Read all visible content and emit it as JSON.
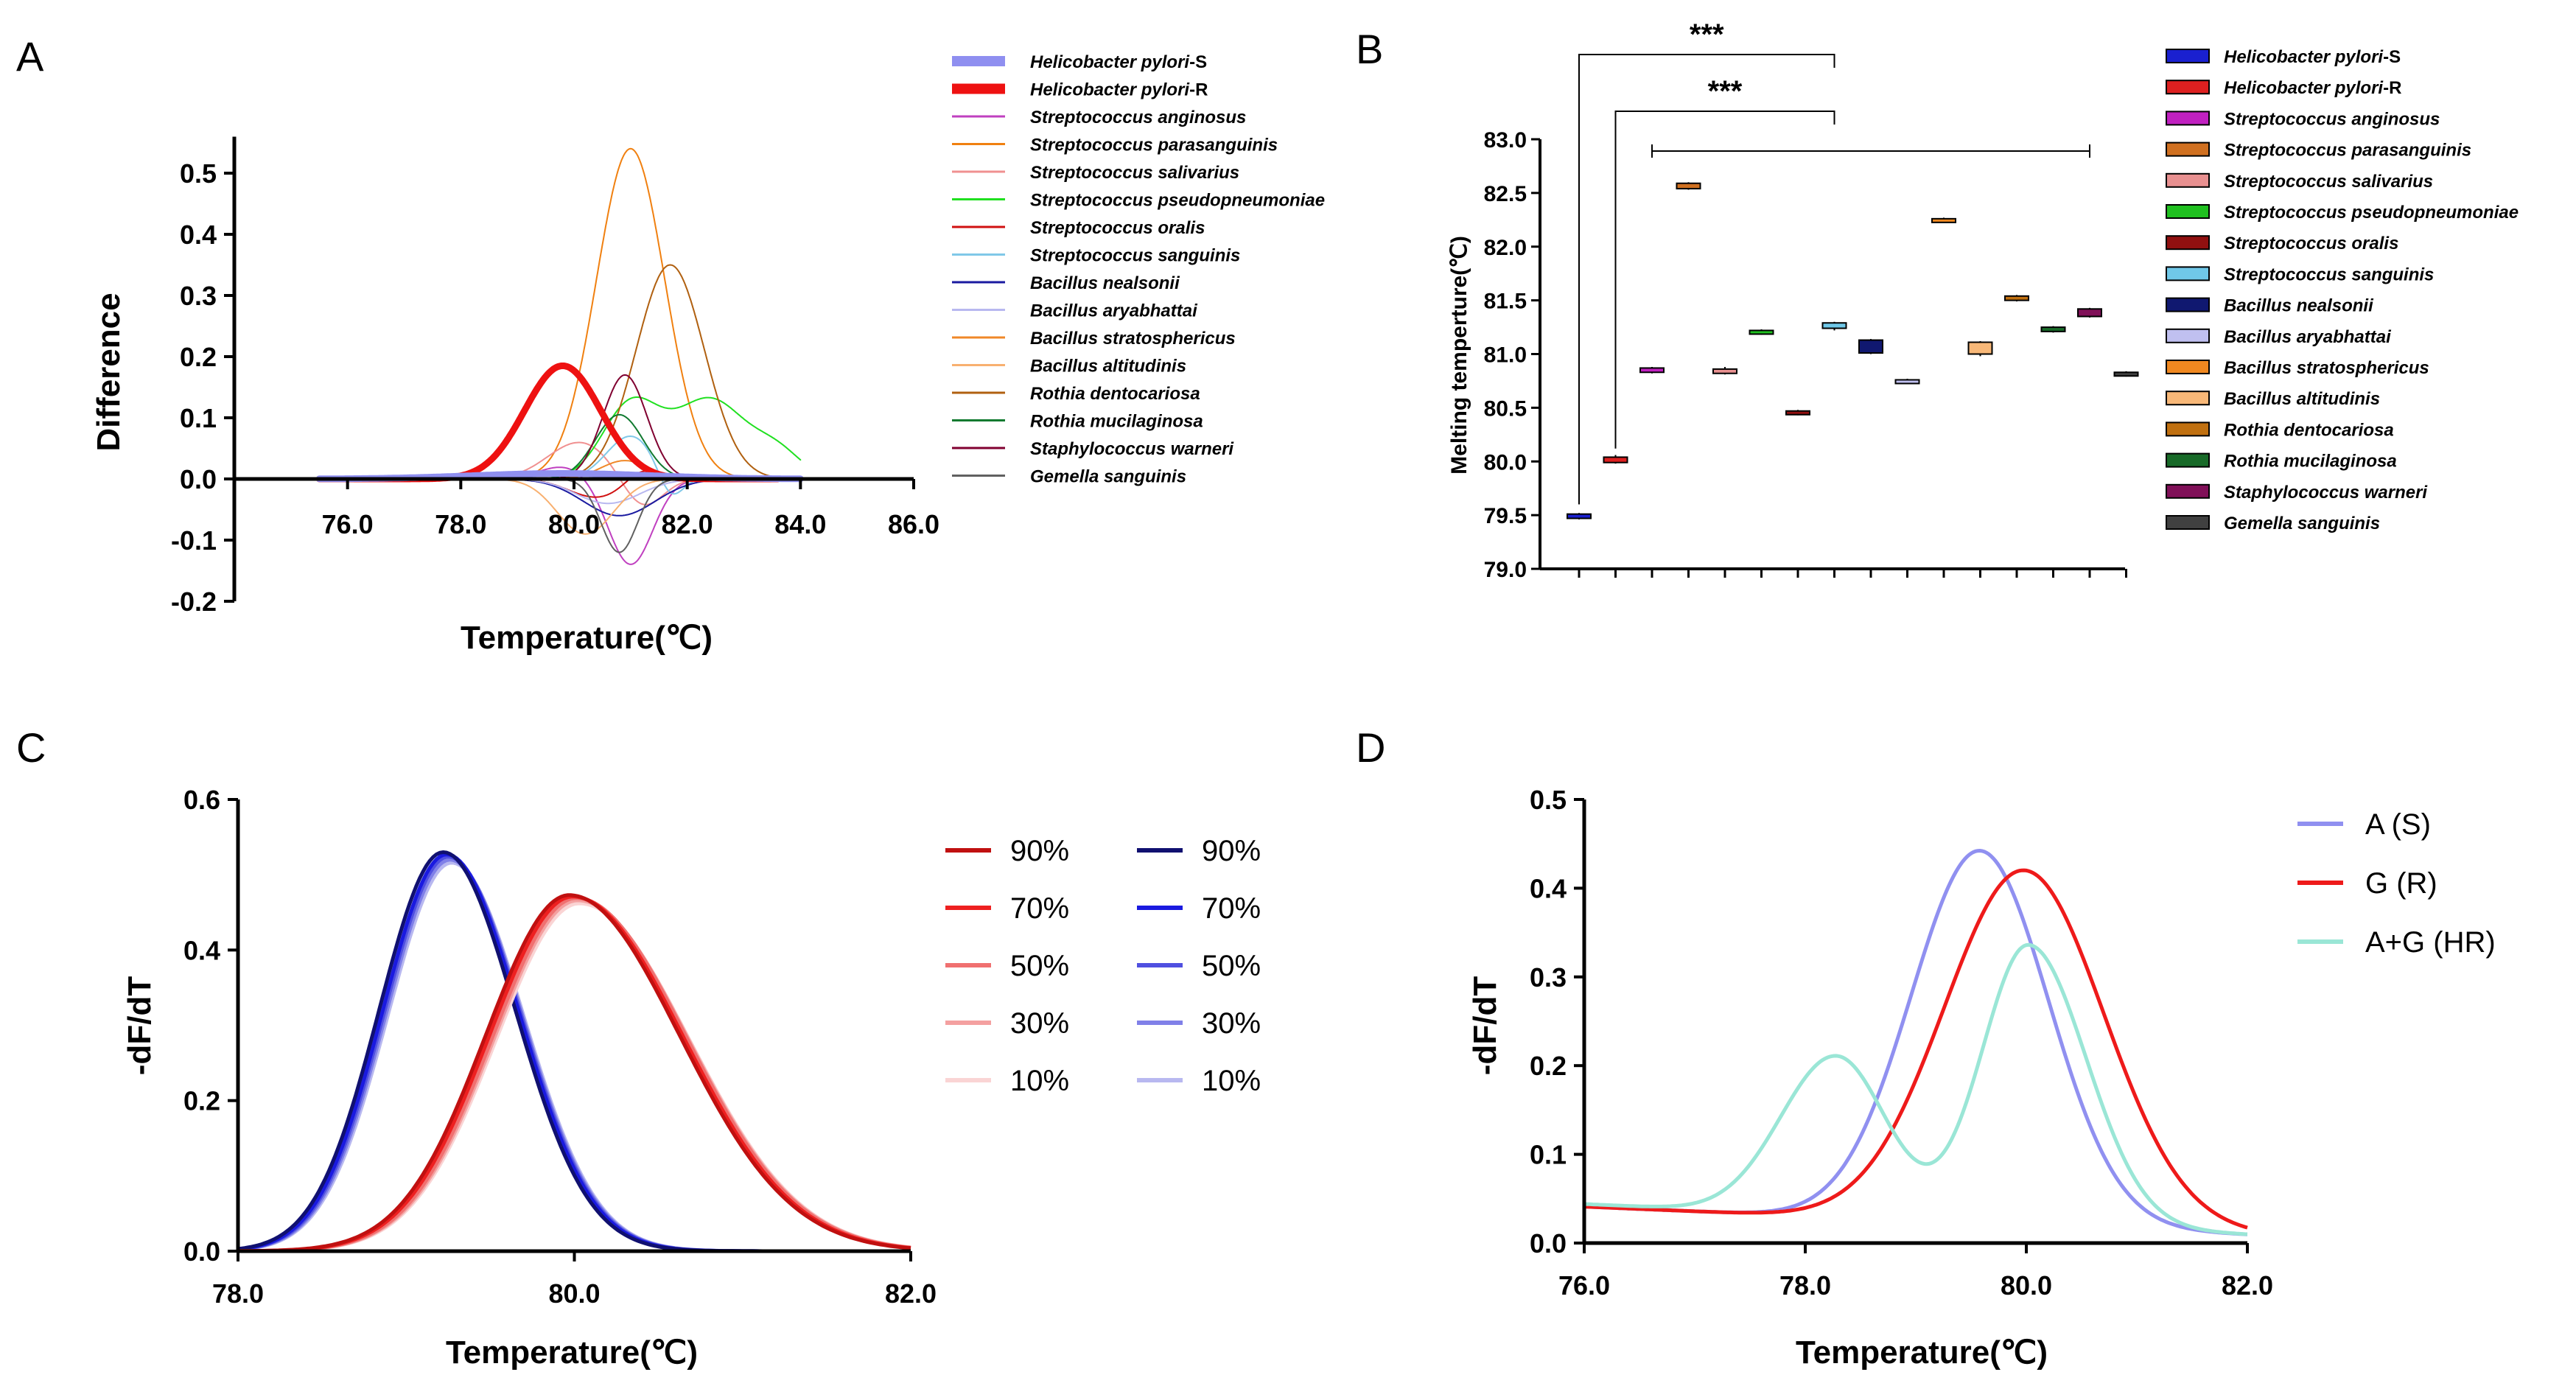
{
  "panels": {
    "A": {
      "label": "A"
    },
    "B": {
      "label": "B"
    },
    "C": {
      "label": "C"
    },
    "D": {
      "label": "D"
    }
  },
  "chart_data": [
    {
      "id": "A",
      "type": "line",
      "title": "",
      "xlabel": "Temperature(℃)",
      "ylabel": "Difference",
      "xlim": [
        74.0,
        86.0
      ],
      "ylim": [
        -0.2,
        0.55
      ],
      "xticks": [
        76.0,
        78.0,
        80.0,
        82.0,
        84.0,
        86.0
      ],
      "xtick_labels": [
        "76.0",
        "78.0",
        "80.0",
        "82.0",
        "84.0",
        "86.0"
      ],
      "yticks": [
        -0.2,
        -0.1,
        0.0,
        0.1,
        0.2,
        0.3,
        0.4,
        0.5
      ],
      "ytick_labels": [
        "-0.2",
        "-0.1",
        "0.0",
        "0.1",
        "0.2",
        "0.3",
        "0.4",
        "0.5"
      ],
      "series": [
        {
          "name": "Helicobacter pylori",
          "suffix": "-S",
          "color": "#8f8ff0",
          "width": 9,
          "shape": [
            [
              0,
              0.009,
              1.0
            ]
          ]
        },
        {
          "name": "Helicobacter pylori",
          "suffix": "-R",
          "color": "#ee1111",
          "width": 9,
          "shape": [
            [
              79.8,
              0.185,
              0.95
            ]
          ]
        },
        {
          "name": "Streptococcus anginosus",
          "suffix": "",
          "color": "#c040c0",
          "width": 2,
          "shape": [
            [
              81.0,
              -0.14,
              0.55
            ],
            [
              79.8,
              0.02,
              0.6
            ]
          ]
        },
        {
          "name": "Streptococcus parasanguinis",
          "suffix": "",
          "color": "#f08010",
          "width": 2,
          "shape": [
            [
              81.0,
              0.54,
              0.85
            ]
          ]
        },
        {
          "name": "Streptococcus salivarius",
          "suffix": "",
          "color": "#f09090",
          "width": 2,
          "shape": [
            [
              80.1,
              0.06,
              0.8
            ],
            [
              81.2,
              -0.05,
              0.5
            ]
          ]
        },
        {
          "name": "Streptococcus pseudopneumoniae",
          "suffix": "",
          "color": "#20e020",
          "width": 2,
          "shape": [
            [
              81.0,
              0.12,
              0.7
            ],
            [
              82.4,
              0.13,
              0.9
            ],
            [
              83.6,
              0.04,
              0.6
            ]
          ]
        },
        {
          "name": "Streptococcus oralis",
          "suffix": "",
          "color": "#d01010",
          "width": 2,
          "shape": [
            [
              80.4,
              -0.03,
              0.7
            ],
            [
              81.2,
              0.02,
              0.4
            ]
          ]
        },
        {
          "name": "Streptococcus sanguinis",
          "suffix": "",
          "color": "#80c8e8",
          "width": 2,
          "shape": [
            [
              81.0,
              0.07,
              0.6
            ],
            [
              81.7,
              -0.04,
              0.3
            ]
          ]
        },
        {
          "name": "Bacillus nealsonii",
          "suffix": "",
          "color": "#1a1aa0",
          "width": 2,
          "shape": [
            [
              80.8,
              -0.06,
              0.9
            ]
          ]
        },
        {
          "name": "Bacillus aryabhattai",
          "suffix": "",
          "color": "#b8b8f0",
          "width": 2,
          "shape": [
            [
              80.6,
              -0.04,
              0.8
            ]
          ]
        },
        {
          "name": "Bacillus stratosphericus",
          "suffix": "",
          "color": "#f08828",
          "width": 2,
          "shape": [
            [
              80.9,
              0.03,
              0.6
            ]
          ]
        },
        {
          "name": "Bacillus altitudinis",
          "suffix": "",
          "color": "#f8b070",
          "width": 2,
          "shape": [
            [
              80.2,
              -0.09,
              0.7
            ]
          ]
        },
        {
          "name": "Rothia dentocariosa",
          "suffix": "",
          "color": "#b06010",
          "width": 2,
          "shape": [
            [
              81.7,
              0.35,
              0.85
            ]
          ]
        },
        {
          "name": "Rothia mucilaginosa",
          "suffix": "",
          "color": "#107a30",
          "width": 2,
          "shape": [
            [
              80.8,
              0.105,
              0.6
            ]
          ]
        },
        {
          "name": "Staphylococcus warneri",
          "suffix": "",
          "color": "#800030",
          "width": 2,
          "shape": [
            [
              80.9,
              0.17,
              0.55
            ]
          ]
        },
        {
          "name": "Gemella sanguinis",
          "suffix": "",
          "color": "#606060",
          "width": 2,
          "shape": [
            [
              80.8,
              -0.12,
              0.45
            ]
          ]
        }
      ]
    },
    {
      "id": "B",
      "type": "box",
      "title": "",
      "xlabel": "",
      "ylabel": "Melting temperture(℃)",
      "ylim": [
        79.0,
        83.0
      ],
      "yticks": [
        79.0,
        79.5,
        80.0,
        80.5,
        81.0,
        81.5,
        82.0,
        82.5,
        83.0
      ],
      "ytick_labels": [
        "79.0",
        "79.5",
        "80.0",
        "80.5",
        "81.0",
        "81.5",
        "82.0",
        "82.5",
        "83.0"
      ],
      "significance": [
        {
          "label": "***",
          "from": 1,
          "to": 8
        },
        {
          "label": "***",
          "from": 2,
          "to": 8
        },
        {
          "label": "",
          "from": 3,
          "to": 15
        }
      ],
      "series": [
        {
          "name": "Helicobacter pylori",
          "suffix": "-S",
          "color": "#1a20d0",
          "low": 79.46,
          "q1": 79.47,
          "q3": 79.51,
          "high": 79.52
        },
        {
          "name": "Helicobacter pylori",
          "suffix": "-R",
          "color": "#dd2020",
          "low": 79.98,
          "q1": 79.99,
          "q3": 80.04,
          "high": 80.06
        },
        {
          "name": "Streptococcus anginosus",
          "suffix": "",
          "color": "#c020c0",
          "low": 80.82,
          "q1": 80.83,
          "q3": 80.87,
          "high": 80.88
        },
        {
          "name": "Streptococcus parasanguinis",
          "suffix": "",
          "color": "#d07020",
          "low": 82.53,
          "q1": 82.54,
          "q3": 82.59,
          "high": 82.6
        },
        {
          "name": "Streptococcus salivarius",
          "suffix": "",
          "color": "#e89090",
          "low": 80.81,
          "q1": 80.82,
          "q3": 80.86,
          "high": 80.88
        },
        {
          "name": "Streptococcus pseudopneumoniae",
          "suffix": "",
          "color": "#20c020",
          "low": 81.18,
          "q1": 81.19,
          "q3": 81.22,
          "high": 81.23
        },
        {
          "name": "Streptococcus oralis",
          "suffix": "",
          "color": "#901010",
          "low": 80.43,
          "q1": 80.44,
          "q3": 80.47,
          "high": 80.48
        },
        {
          "name": "Streptococcus sanguinis",
          "suffix": "",
          "color": "#70c8e8",
          "low": 81.22,
          "q1": 81.24,
          "q3": 81.29,
          "high": 81.3
        },
        {
          "name": "Bacillus nealsonii",
          "suffix": "",
          "color": "#101870",
          "low": 81.0,
          "q1": 81.01,
          "q3": 81.13,
          "high": 81.14
        },
        {
          "name": "Bacillus aryabhattai",
          "suffix": "",
          "color": "#c0c0f0",
          "low": 80.73,
          "q1": 80.74,
          "q3": 80.76,
          "high": 80.77
        },
        {
          "name": "Bacillus stratosphericus",
          "suffix": "",
          "color": "#f08820",
          "low": 82.23,
          "q1": 82.24,
          "q3": 82.26,
          "high": 82.27
        },
        {
          "name": "Bacillus altitudinis",
          "suffix": "",
          "color": "#f8b878",
          "low": 80.98,
          "q1": 81.0,
          "q3": 81.11,
          "high": 81.12
        },
        {
          "name": "Rothia dentocariosa",
          "suffix": "",
          "color": "#c07010",
          "low": 81.49,
          "q1": 81.5,
          "q3": 81.54,
          "high": 81.55
        },
        {
          "name": "Rothia mucilaginosa",
          "suffix": "",
          "color": "#186a28",
          "low": 81.2,
          "q1": 81.21,
          "q3": 81.25,
          "high": 81.26
        },
        {
          "name": "Staphylococcus warneri",
          "suffix": "",
          "color": "#801058",
          "low": 81.34,
          "q1": 81.35,
          "q3": 81.42,
          "high": 81.43
        },
        {
          "name": "Gemella sanguinis",
          "suffix": "",
          "color": "#404040",
          "low": 80.79,
          "q1": 80.8,
          "q3": 80.83,
          "high": 80.84
        }
      ]
    },
    {
      "id": "C",
      "type": "line",
      "title": "",
      "xlabel": "Temperature(℃)",
      "ylabel": "-dF/dT",
      "xlim": [
        78.0,
        82.0
      ],
      "ylim": [
        0.0,
        0.6
      ],
      "xticks": [
        78.0,
        80.0,
        82.0
      ],
      "xtick_labels": [
        "78.0",
        "80.0",
        "82.0"
      ],
      "yticks": [
        0.0,
        0.2,
        0.4,
        0.6
      ],
      "ytick_labels": [
        "0.0",
        "0.2",
        "0.4",
        "0.6"
      ],
      "series": [
        {
          "name": "90%",
          "group": "R",
          "color": "#c01010",
          "width": 5,
          "peak": [
            79.97,
            0.473,
            0.72,
            0.95
          ]
        },
        {
          "name": "70%",
          "group": "R",
          "color": "#ee2020",
          "width": 5,
          "peak": [
            79.99,
            0.471,
            0.72,
            0.95
          ]
        },
        {
          "name": "50%",
          "group": "R",
          "color": "#f07070",
          "width": 5,
          "peak": [
            80.01,
            0.469,
            0.72,
            0.95
          ]
        },
        {
          "name": "30%",
          "group": "R",
          "color": "#f4a0a0",
          "width": 5,
          "peak": [
            80.02,
            0.466,
            0.72,
            0.95
          ]
        },
        {
          "name": "10%",
          "group": "R",
          "color": "#fad4d4",
          "width": 5,
          "peak": [
            80.03,
            0.462,
            0.72,
            0.95
          ]
        },
        {
          "name": "90%",
          "group": "S",
          "color": "#101070",
          "width": 5,
          "peak": [
            79.22,
            0.53,
            0.55,
            0.62
          ]
        },
        {
          "name": "70%",
          "group": "S",
          "color": "#1a1ae0",
          "width": 5,
          "peak": [
            79.24,
            0.527,
            0.55,
            0.62
          ]
        },
        {
          "name": "50%",
          "group": "S",
          "color": "#5050e0",
          "width": 5,
          "peak": [
            79.25,
            0.524,
            0.55,
            0.62
          ]
        },
        {
          "name": "30%",
          "group": "S",
          "color": "#8080e8",
          "width": 5,
          "peak": [
            79.26,
            0.52,
            0.55,
            0.62
          ]
        },
        {
          "name": "10%",
          "group": "S",
          "color": "#b8b8f0",
          "width": 5,
          "peak": [
            79.27,
            0.516,
            0.55,
            0.62
          ]
        }
      ]
    },
    {
      "id": "D",
      "type": "line",
      "title": "",
      "xlabel": "Temperature(℃)",
      "ylabel": "-dF/dT",
      "xlim": [
        76.0,
        82.0
      ],
      "ylim": [
        0.0,
        0.5
      ],
      "xticks": [
        76.0,
        78.0,
        80.0,
        82.0
      ],
      "xtick_labels": [
        "76.0",
        "78.0",
        "80.0",
        "82.0"
      ],
      "yticks": [
        0.0,
        0.1,
        0.2,
        0.3,
        0.4,
        0.5
      ],
      "ytick_labels": [
        "0.0",
        "0.1",
        "0.2",
        "0.3",
        "0.4",
        "0.5"
      ],
      "series": [
        {
          "name": "A (S)",
          "color": "#9090f0",
          "width": 5,
          "baseline": [
            0.045,
            0.0025
          ],
          "peaks": [
            [
              79.58,
              0.42,
              0.62,
              0.62
            ]
          ]
        },
        {
          "name": "G (R)",
          "color": "#ee1a1a",
          "width": 5,
          "baseline": [
            0.045,
            0.0025
          ],
          "peaks": [
            [
              79.98,
              0.4,
              0.72,
              0.72
            ]
          ]
        },
        {
          "name": "A+G (HR)",
          "color": "#9ae6d6",
          "width": 5,
          "baseline": [
            0.048,
            0.0025
          ],
          "peaks": [
            [
              78.28,
              0.18,
              0.5,
              0.45
            ],
            [
              80.02,
              0.315,
              0.42,
              0.52
            ]
          ]
        }
      ]
    }
  ]
}
